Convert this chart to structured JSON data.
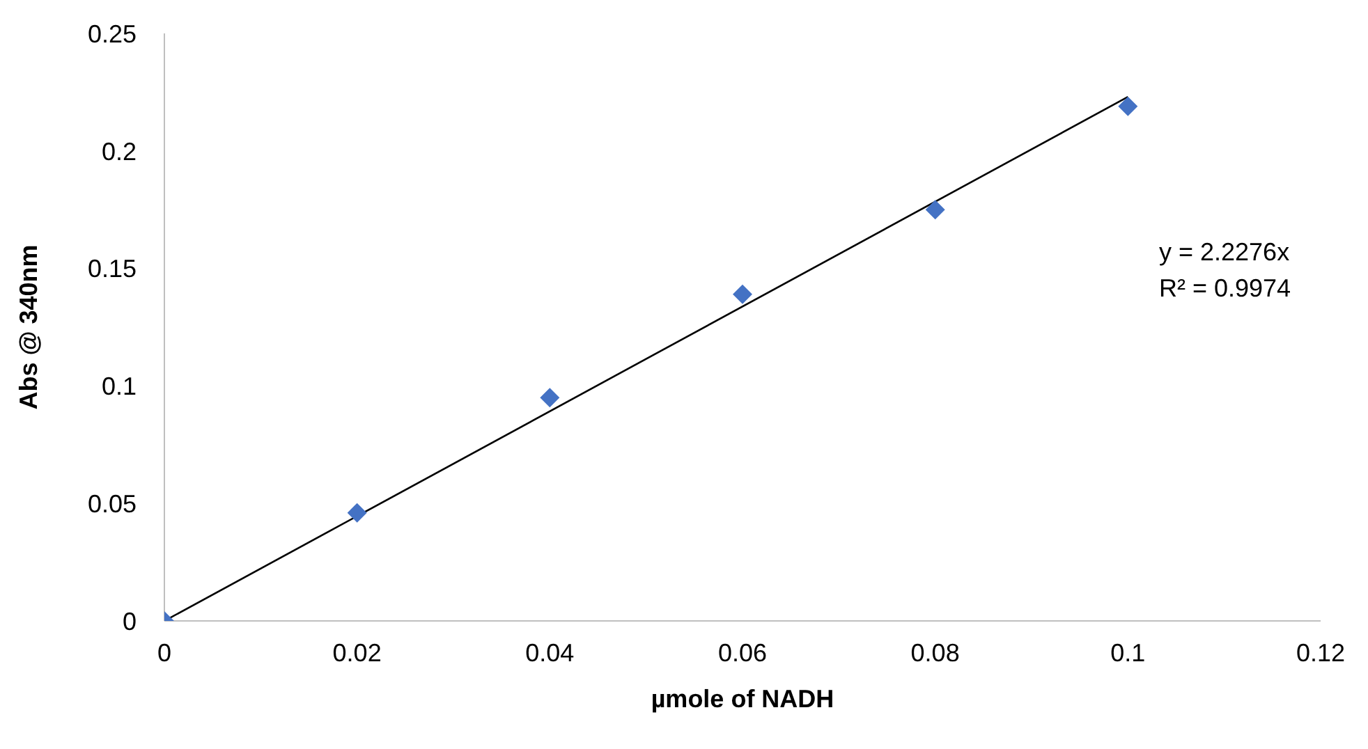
{
  "chart_data": {
    "type": "scatter",
    "xlabel": "µmole of NADH",
    "ylabel": "Abs @ 340nm",
    "x": [
      0,
      0.02,
      0.04,
      0.06,
      0.08,
      0.1
    ],
    "series": [
      {
        "color": "#4472c4",
        "marker": "diamond",
        "values": [
          0,
          0.046,
          0.095,
          0.139,
          0.175,
          0.219
        ]
      },
      {
        "type": "line",
        "color": "#000000",
        "marker": "none",
        "x": [
          0,
          0.1
        ],
        "values": [
          0,
          0.223
        ]
      }
    ],
    "annotations": [
      "y = 2.2276x",
      "R² = 0.9974"
    ],
    "xlim": [
      0,
      0.12
    ],
    "xticks": [
      0,
      0.02,
      0.04,
      0.06,
      0.08,
      0.1,
      0.12
    ],
    "ylim": [
      0,
      0.25
    ],
    "yticks": [
      0,
      0.05,
      0.1,
      0.15,
      0.2,
      0.25
    ]
  }
}
